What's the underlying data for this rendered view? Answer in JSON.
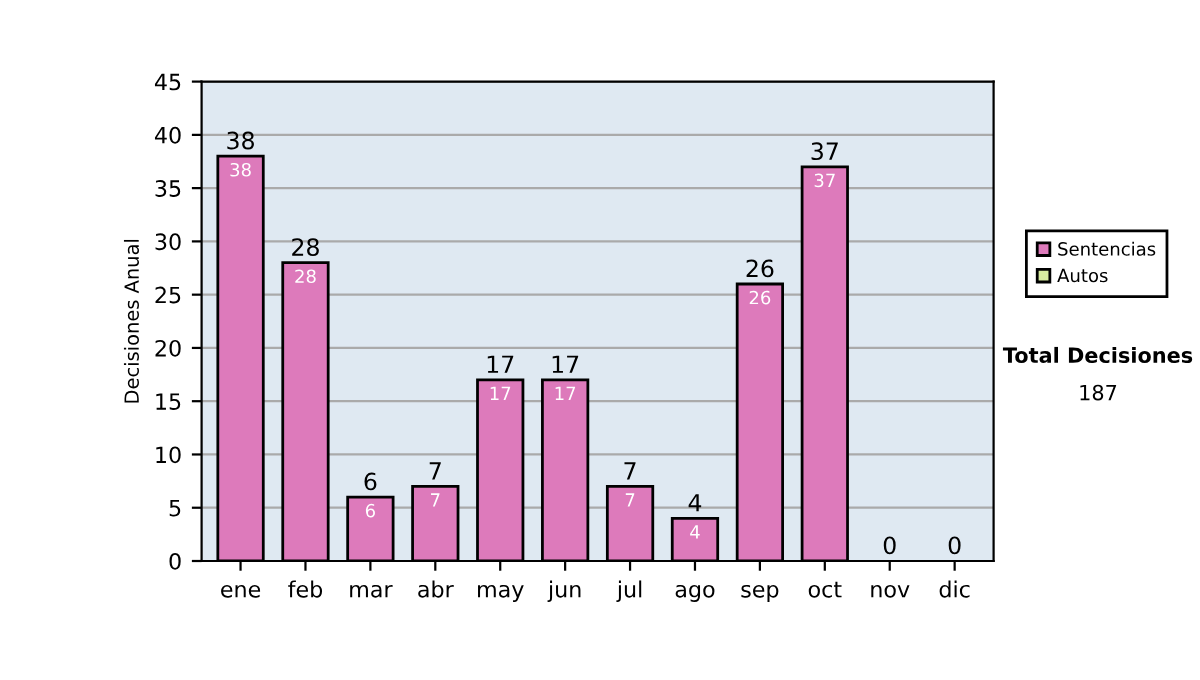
{
  "chart_data": {
    "type": "bar",
    "stacked": true,
    "ylabel": "Decisiones Anual",
    "categories": [
      "ene",
      "feb",
      "mar",
      "abr",
      "may",
      "jun",
      "jul",
      "ago",
      "sep",
      "oct",
      "nov",
      "dic"
    ],
    "series": [
      {
        "name": "Sentencias",
        "color": "#dd7abb",
        "values": [
          38,
          28,
          6,
          7,
          17,
          17,
          7,
          4,
          26,
          37,
          0,
          0
        ],
        "value_labels": [
          "38",
          "28",
          "6",
          "7",
          "17",
          "17",
          "7",
          "4",
          "26",
          "37",
          null,
          null
        ]
      },
      {
        "name": "Autos",
        "color": "#d8eca0",
        "values": [
          0,
          0,
          0,
          0,
          0,
          0,
          0,
          0,
          0,
          0,
          0,
          0
        ]
      }
    ],
    "totals": [
      "38",
      "28",
      "6",
      "7",
      "17",
      "17",
      "7",
      "4",
      "26",
      "37",
      "0",
      "0"
    ],
    "ylim": [
      0,
      45
    ],
    "yticks": [
      0,
      5,
      10,
      15,
      20,
      25,
      30,
      35,
      40,
      45
    ],
    "grid": "y",
    "legend": "right",
    "annotations": [
      "Total Decisiones",
      "187"
    ]
  }
}
